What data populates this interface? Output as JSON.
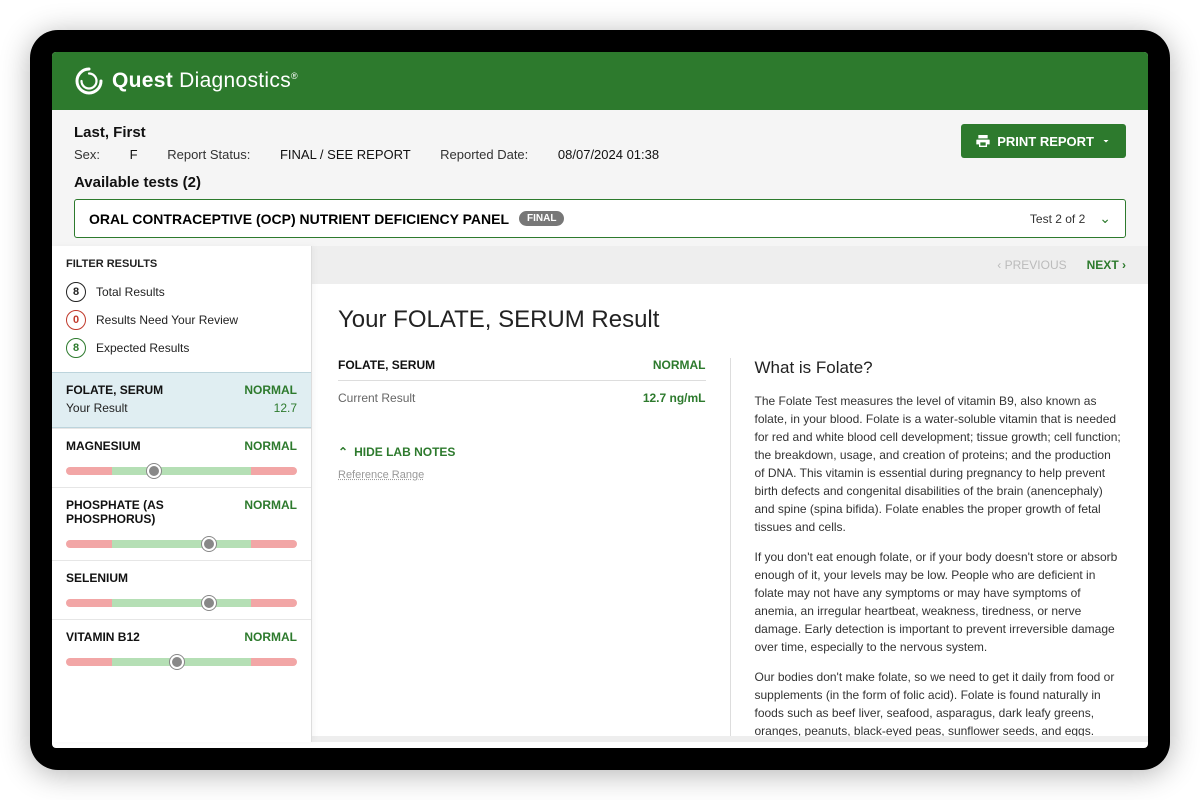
{
  "colors": {
    "brand_green": "#2d7a2d",
    "background_gray": "#eeeeee",
    "meta_gray": "#f5f5f5",
    "pill_gray": "#777777",
    "range_red": "#f2a6a6",
    "range_green": "#b5dfb5",
    "selected_bg": "#e0eef2"
  },
  "header": {
    "brand_bold": "Quest",
    "brand_light": " Diagnostics"
  },
  "meta": {
    "patient_name": "Last, First",
    "sex_label": "Sex:",
    "sex_value": "F",
    "status_label": "Report Status:",
    "status_value": "FINAL / SEE REPORT",
    "reported_label": "Reported Date:",
    "reported_value": "08/07/2024 01:38",
    "print_label": "PRINT REPORT",
    "available_tests_label": "Available tests (2)"
  },
  "test_selector": {
    "name": "ORAL CONTRACEPTIVE (OCP) NUTRIENT DEFICIENCY PANEL",
    "pill": "FINAL",
    "position": "Test 2 of 2"
  },
  "sidebar": {
    "filter_head": "FILTER RESULTS",
    "rows": [
      {
        "count": "8",
        "label": "Total Results",
        "badge": "black"
      },
      {
        "count": "0",
        "label": "Results Need Your Review",
        "badge": "red"
      },
      {
        "count": "8",
        "label": "Expected Results",
        "badge": "green"
      }
    ],
    "tests": [
      {
        "name": "FOLATE, SERUM",
        "status": "NORMAL",
        "selected": true,
        "sub_label": "Your Result",
        "sub_value": "12.7",
        "show_bar": false,
        "marker_pct": 50
      },
      {
        "name": "MAGNESIUM",
        "status": "NORMAL",
        "selected": false,
        "show_bar": true,
        "marker_pct": 38
      },
      {
        "name": "PHOSPHATE (AS PHOSPHORUS)",
        "status": "NORMAL",
        "selected": false,
        "show_bar": true,
        "marker_pct": 62
      },
      {
        "name": "SELENIUM",
        "status": "",
        "selected": false,
        "show_bar": true,
        "marker_pct": 62
      },
      {
        "name": "VITAMIN B12",
        "status": "NORMAL",
        "selected": false,
        "show_bar": true,
        "marker_pct": 48
      }
    ]
  },
  "main": {
    "nav_prev": "PREVIOUS",
    "nav_next": "NEXT",
    "title": "Your FOLATE, SERUM Result",
    "left": {
      "name": "FOLATE, SERUM",
      "status": "NORMAL",
      "current_label": "Current Result",
      "current_value": "12.7 ng/mL"
    },
    "right": {
      "heading": "What is Folate?",
      "paragraphs": [
        "The Folate Test measures the level of vitamin B9, also known as folate, in your blood. Folate is a water-soluble vitamin that is needed for red and white blood cell development; tissue growth; cell function; the breakdown, usage, and creation of proteins; and the production of DNA. This vitamin is essential during pregnancy to help prevent birth defects and congenital disabilities of the brain (anencephaly) and spine (spina bifida). Folate enables the proper growth of fetal tissues and cells.",
        "If you don't eat enough folate, or if your body doesn't store or absorb enough of it, your levels may be low. People who are deficient in folate may not have any symptoms or may have symptoms of anemia, an irregular heartbeat, weakness, tiredness, or nerve damage. Early detection is important to prevent irreversible damage over time, especially to the nervous system.",
        "Our bodies don't make folate, so we need to get it daily from food or supplements (in the form of folic acid). Folate is found naturally in foods such as beef liver, seafood, asparagus, dark leafy greens, oranges, peanuts, black-eyed peas, sunflower seeds, and eggs."
      ]
    },
    "hide_notes": "HIDE LAB NOTES",
    "ref_range": "Reference Range"
  }
}
